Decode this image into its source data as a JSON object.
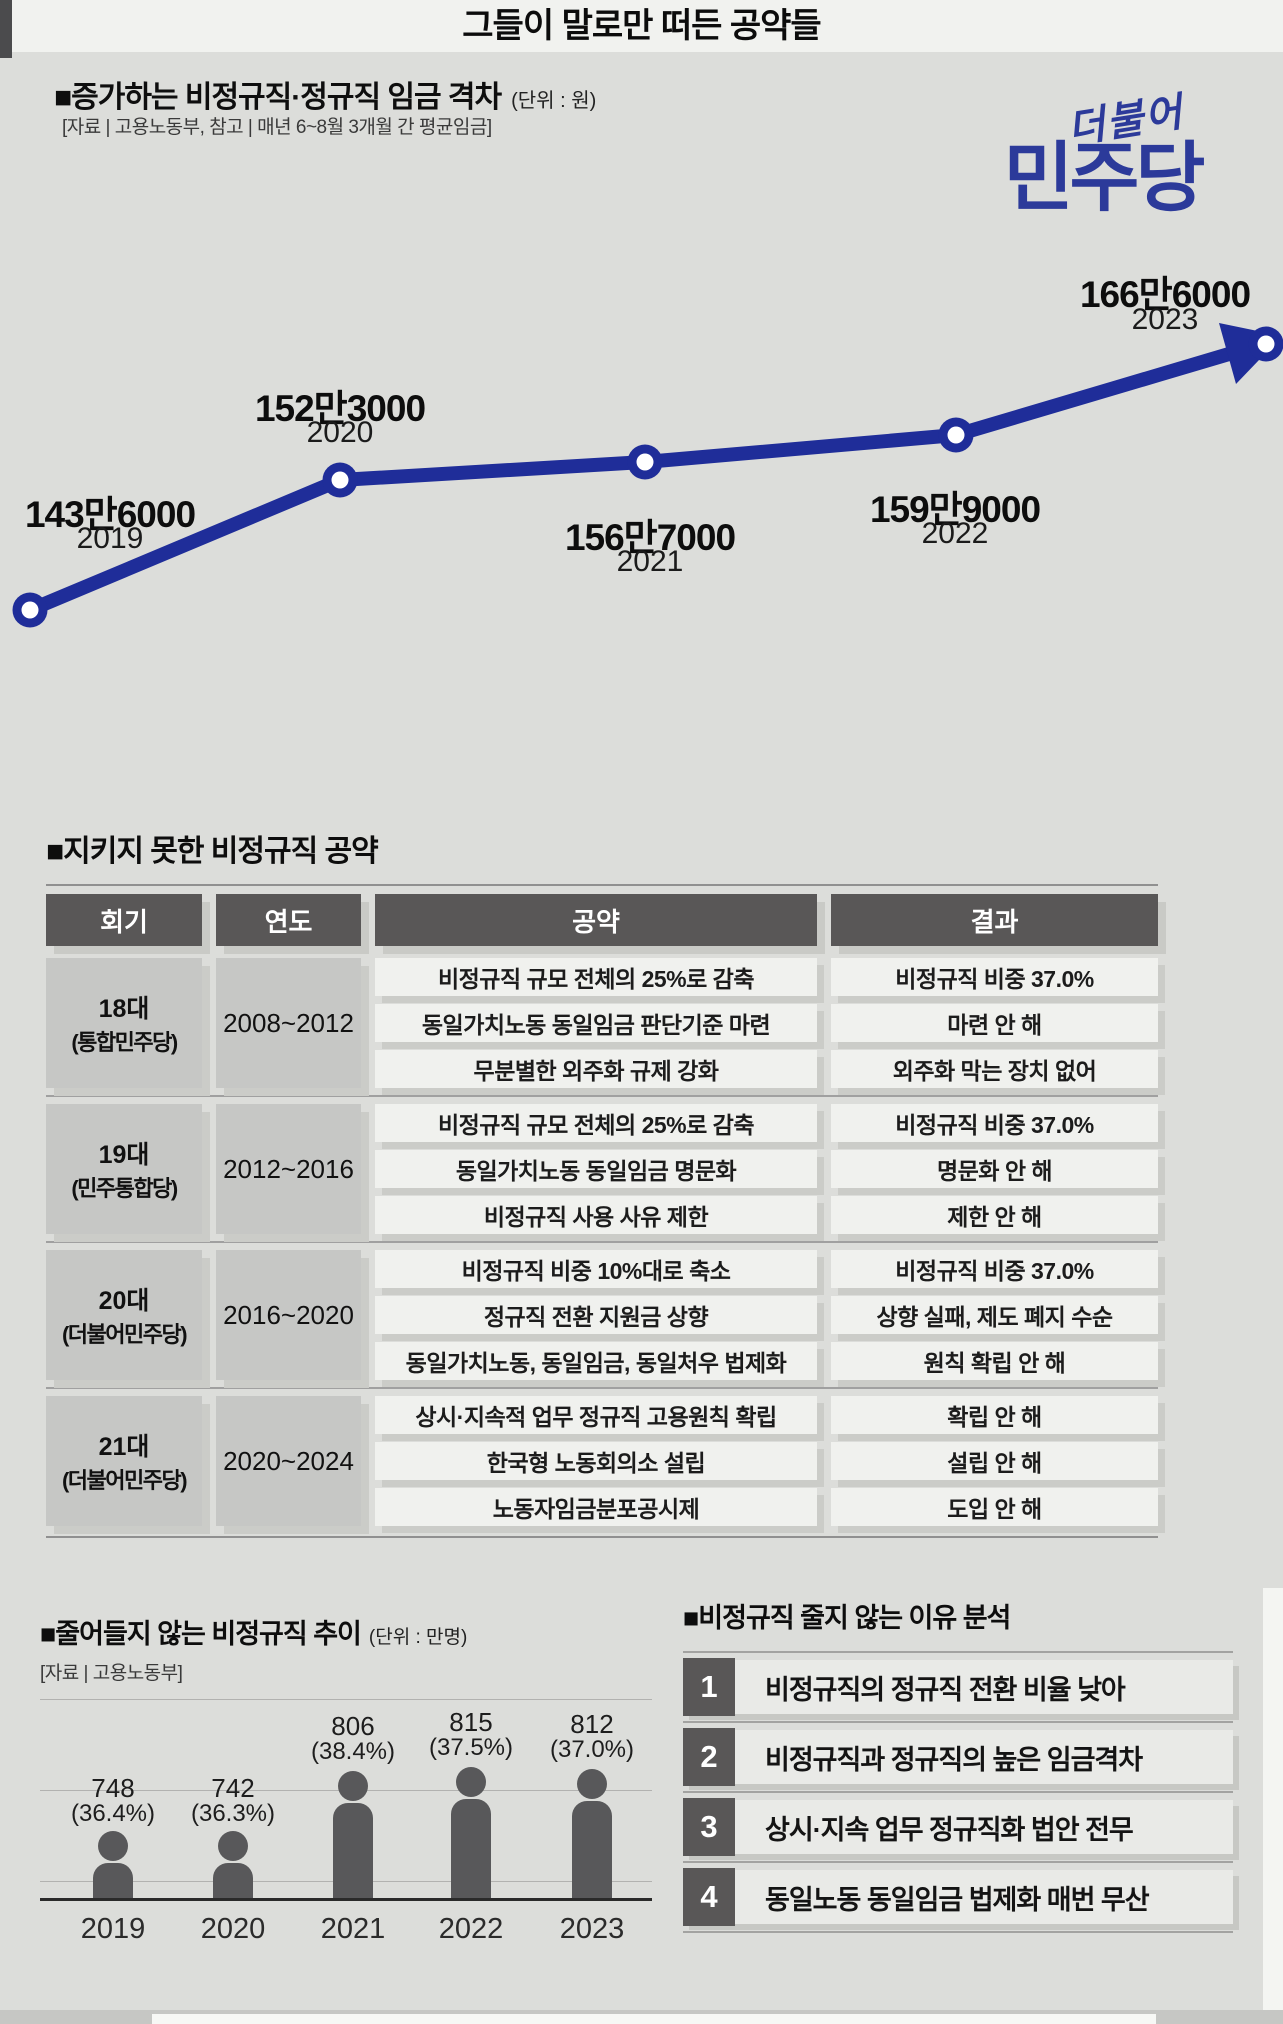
{
  "page": {
    "title": "그들이 말로만 떠든 공약들"
  },
  "colors": {
    "background": "#dcddda",
    "band": "#f1f2ef",
    "line_navy": "#1f2d99",
    "logo_navy": "#2c3a9a",
    "table_header": "#595757",
    "group_cell": "#c6c7c5",
    "light_cell": "#f0f1ee",
    "person_gray": "#58585a"
  },
  "wage_chart": {
    "title": "■증가하는 비정규직·정규직 임금 격차",
    "unit": "(단위 : 원)",
    "source": "[자료 | 고용노동부, 참고 | 매년 6~8월 3개월 간 평균임금]",
    "points": [
      {
        "label": "143만6000",
        "year": "2019"
      },
      {
        "label": "152만3000",
        "year": "2020"
      },
      {
        "label": "156만7000",
        "year": "2021"
      },
      {
        "label": "159만9000",
        "year": "2022"
      },
      {
        "label": "166만6000",
        "year": "2023"
      }
    ]
  },
  "logo": {
    "script": "더불어",
    "main": "민주당"
  },
  "promise_table": {
    "title": "■지키지 못한 비정규직 공약",
    "headers": [
      "회기",
      "연도",
      "공약",
      "결과"
    ],
    "groups": [
      {
        "assembly": "18대",
        "party": "(통합민주당)",
        "years": "2008~2012",
        "rows": [
          [
            "비정규직 규모 전체의 25%로 감축",
            "비정규직 비중 37.0%"
          ],
          [
            "동일가치노동 동일임금 판단기준 마련",
            "마련 안 해"
          ],
          [
            "무분별한 외주화 규제 강화",
            "외주화 막는 장치 없어"
          ]
        ]
      },
      {
        "assembly": "19대",
        "party": "(민주통합당)",
        "years": "2012~2016",
        "rows": [
          [
            "비정규직 규모 전체의 25%로 감축",
            "비정규직 비중 37.0%"
          ],
          [
            "동일가치노동 동일임금 명문화",
            "명문화 안 해"
          ],
          [
            "비정규직 사용 사유 제한",
            "제한 안 해"
          ]
        ]
      },
      {
        "assembly": "20대",
        "party": "(더불어민주당)",
        "years": "2016~2020",
        "rows": [
          [
            "비정규직 비중 10%대로 축소",
            "비정규직 비중 37.0%"
          ],
          [
            "정규직 전환 지원금 상향",
            "상향 실패, 제도 폐지 수순"
          ],
          [
            "동일가치노동, 동일임금, 동일처우 법제화",
            "원칙 확립 안 해"
          ]
        ]
      },
      {
        "assembly": "21대",
        "party": "(더불어민주당)",
        "years": "2020~2024",
        "rows": [
          [
            "상시·지속적 업무 정규직 고용원칙 확립",
            "확립 안 해"
          ],
          [
            "한국형 노동회의소 설립",
            "설립 안 해"
          ],
          [
            "노동자임금분포공시제",
            "도입 안 해"
          ]
        ]
      }
    ]
  },
  "trend_chart": {
    "title": "■줄어들지 않는 비정규직 추이",
    "unit": "(단위 : 만명)",
    "source": "[자료 | 고용노동부]",
    "bars": [
      {
        "year": "2019",
        "value": "748",
        "pct": "(36.4%)"
      },
      {
        "year": "2020",
        "value": "742",
        "pct": "(36.3%)"
      },
      {
        "year": "2021",
        "value": "806",
        "pct": "(38.4%)"
      },
      {
        "year": "2022",
        "value": "815",
        "pct": "(37.5%)"
      },
      {
        "year": "2023",
        "value": "812",
        "pct": "(37.0%)"
      }
    ]
  },
  "reasons": {
    "title": "■비정규직 줄지 않는 이유 분석",
    "items": [
      "비정규직의 정규직 전환 비율 낮아",
      "비정규직과 정규직의 높은 임금격차",
      "상시·지속 업무 정규직화 법안 전무",
      "동일노동 동일임금 법제화 매번 무산"
    ]
  },
  "chart_data": [
    {
      "type": "line",
      "title": "증가하는 비정규직·정규직 임금 격차",
      "unit": "원",
      "x": [
        2019,
        2020,
        2021,
        2022,
        2023
      ],
      "values": [
        1436000,
        1523000,
        1567000,
        1599000,
        1666000
      ],
      "value_labels": [
        "143만6000",
        "152만3000",
        "156만7000",
        "159만9000",
        "166만6000"
      ],
      "source": "고용노동부, 매년 6~8월 3개월 간 평균임금",
      "legend_position": "none",
      "grid": false,
      "arrow_end": true
    },
    {
      "type": "bar",
      "title": "줄어들지 않는 비정규직 추이",
      "unit": "만명",
      "categories": [
        "2019",
        "2020",
        "2021",
        "2022",
        "2023"
      ],
      "values": [
        748,
        742,
        806,
        815,
        812
      ],
      "percent_labels": [
        "36.4%",
        "36.3%",
        "38.4%",
        "37.5%",
        "37.0%"
      ],
      "source": "고용노동부",
      "style": "person-pictogram",
      "grid": true,
      "ylim": [
        0,
        900
      ]
    }
  ]
}
